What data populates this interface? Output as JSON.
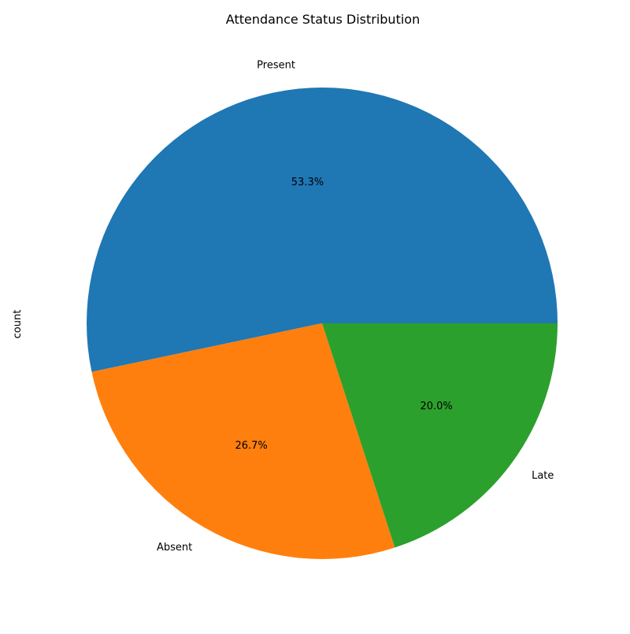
{
  "chart_data": {
    "type": "pie",
    "title": "Attendance Status Distribution",
    "ylabel": "count",
    "slices": [
      {
        "label": "Present",
        "percent": 53.3,
        "percent_label": "53.3%",
        "color": "#1f77b4"
      },
      {
        "label": "Absent",
        "percent": 26.7,
        "percent_label": "26.7%",
        "color": "#ff7f0e"
      },
      {
        "label": "Late",
        "percent": 20.0,
        "percent_label": "20.0%",
        "color": "#2ca02c"
      }
    ],
    "start_angle_deg": 0,
    "direction": "counterclockwise"
  }
}
